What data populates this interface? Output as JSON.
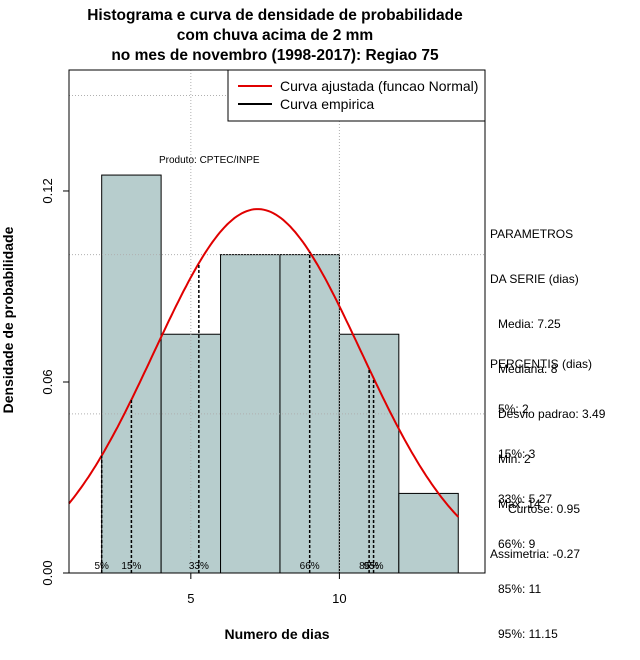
{
  "title_lines": [
    "Histograma e curva de densidade de probabilidade",
    "com chuva acima de 2 mm",
    "no mes de novembro (1998-2017): Regiao 75"
  ],
  "produto": "Produto: CPTEC/INPE",
  "parametros": {
    "heading": [
      "PARAMETROS",
      "DA SERIE (dias)"
    ],
    "lines": [
      "Media: 7.25",
      "Mediana: 8",
      "Desvio padrao: 3.49",
      "Min: 2",
      "Max: 14"
    ]
  },
  "percentis": {
    "heading": "PERCENTIS (dias)",
    "lines": [
      "5%: 2",
      "15%: 3",
      "33%: 5.27",
      "66%: 9",
      "85%: 11",
      "95%: 11.15"
    ]
  },
  "shape": {
    "lines": [
      "Curtose: 0.95",
      "Assimetria: -0.27"
    ]
  },
  "colors": {
    "bar_fill": "#b7cdcd",
    "curve": "#e00000",
    "grid": "#b0b0b0"
  },
  "chart_data": {
    "type": "bar",
    "xlabel": "Numero de dias",
    "ylabel": "Densidade de probabilidade",
    "xlim": [
      0.9,
      14.9
    ],
    "ylim": [
      0,
      0.158
    ],
    "x_ticks": [
      5,
      10
    ],
    "y_ticks": [
      0.0,
      0.06,
      0.12
    ],
    "y_tick_labels": [
      "0.00",
      "0.06",
      "0.12"
    ],
    "grid": true,
    "legend_position": "top-right",
    "bins": [
      {
        "start": 2,
        "end": 4,
        "density": 0.125
      },
      {
        "start": 4,
        "end": 6,
        "density": 0.075
      },
      {
        "start": 6,
        "end": 8,
        "density": 0.1
      },
      {
        "start": 8,
        "end": 10,
        "density": 0.1
      },
      {
        "start": 10,
        "end": 12,
        "density": 0.075
      },
      {
        "start": 12,
        "end": 14,
        "density": 0.025
      }
    ],
    "series": [
      {
        "name": "Curva ajustada (funcao Normal)",
        "type": "normal",
        "mean": 7.25,
        "sd": 3.49,
        "color": "#e00000"
      },
      {
        "name": "Curva empirica",
        "color": "#000000"
      }
    ],
    "percentiles": [
      {
        "label": "5%",
        "value": 2
      },
      {
        "label": "15%",
        "value": 3
      },
      {
        "label": "33%",
        "value": 5.27
      },
      {
        "label": "66%",
        "value": 9
      },
      {
        "label": "85%",
        "value": 11
      },
      {
        "label": "95%",
        "value": 11.15
      }
    ]
  }
}
